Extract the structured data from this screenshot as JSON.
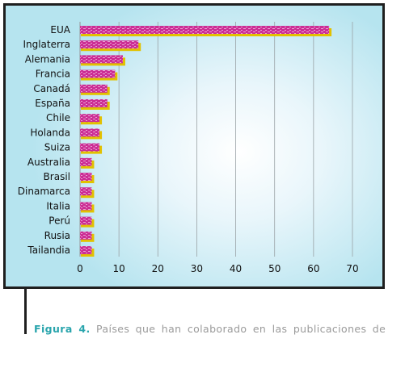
{
  "caption": {
    "label": "Figura 4.",
    "text": "Países que han colaborado en las publicaciones de"
  },
  "colors": {
    "bar_fill": "#cc2e95",
    "bar_highlight": "#e8a0d2",
    "bar_shadow": "#e2c100",
    "grid": "#9aa2a6",
    "frame": "#1f1f1f",
    "caption_label": "#2aa5ad"
  },
  "chart_data": {
    "type": "bar",
    "orientation": "horizontal",
    "categories": [
      "EUA",
      "Inglaterra",
      "Alemania",
      "Francia",
      "Canadá",
      "España",
      "Chile",
      "Holanda",
      "Suiza",
      "Australia",
      "Brasil",
      "Dinamarca",
      "Italia",
      "Perú",
      "Rusia",
      "Tailandia"
    ],
    "values": [
      64,
      15,
      11,
      9,
      7,
      7,
      5,
      5,
      5,
      3,
      3,
      3,
      3,
      3,
      3,
      3
    ],
    "xlim": [
      0,
      70
    ],
    "xticks": [
      0,
      10,
      20,
      30,
      40,
      50,
      60,
      70
    ],
    "grid": true,
    "title": "",
    "xlabel": "",
    "ylabel": ""
  }
}
